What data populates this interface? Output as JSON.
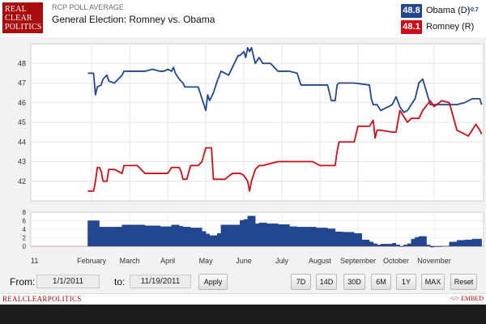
{
  "header": {
    "logo_lines": [
      "REAL",
      "CLEAR",
      "POLITICS"
    ],
    "kicker": "RCP POLL AVERAGE",
    "title": "General Election: Romney vs. Obama"
  },
  "legend": [
    {
      "value": "48.8",
      "name": "Obama (D)",
      "change": "+0.7",
      "color": "#22468f"
    },
    {
      "value": "48.1",
      "name": "Romney (R)",
      "change": "",
      "color": "#cc0d16"
    }
  ],
  "controls": {
    "from_label": "From:",
    "from_value": "1/1/2011",
    "to_label": "to:",
    "to_value": "11/19/2011",
    "apply_label": "Apply",
    "range_buttons": [
      "7D",
      "14D",
      "30D",
      "6M",
      "1Y",
      "MAX",
      "Reset"
    ]
  },
  "footer": {
    "brand": "REALCLEARPOLITICS",
    "embed": "</> EMBED"
  },
  "chart_data": [
    {
      "type": "line",
      "ylim": [
        41,
        49
      ],
      "yticks": [
        42,
        43,
        44,
        45,
        46,
        47,
        48
      ],
      "xlim": [
        0,
        11.9
      ],
      "grid": true,
      "series": [
        {
          "name": "Obama (D)",
          "color": "#22468f",
          "x": [
            1.5,
            1.65,
            1.7,
            1.75,
            1.85,
            1.9,
            2.0,
            2.05,
            2.2,
            2.4,
            2.45,
            2.6,
            2.8,
            3.0,
            3.2,
            3.4,
            3.5,
            3.6,
            3.7,
            3.75,
            3.8,
            3.9,
            4.0,
            4.05,
            4.4,
            4.5,
            4.6,
            4.65,
            4.7,
            4.8,
            4.9,
            5.0,
            5.2,
            5.4,
            5.45,
            5.5,
            5.6,
            5.65,
            5.7,
            5.75,
            5.8,
            5.9,
            6.0,
            6.1,
            6.3,
            6.5,
            6.6,
            6.8,
            7.0,
            7.1,
            7.3,
            7.6,
            7.8,
            7.9,
            8.0,
            8.05,
            8.1,
            8.5,
            8.9,
            8.95,
            9.0,
            9.1,
            9.2,
            9.5,
            9.6,
            9.7,
            9.8,
            9.9,
            10.0,
            10.1,
            10.2,
            10.3,
            10.5,
            10.8,
            11.0,
            11.2,
            11.4,
            11.6,
            11.75,
            11.8,
            11.85
          ],
          "values": [
            47.5,
            47.5,
            46.4,
            46.8,
            46.9,
            47.2,
            47.4,
            47.1,
            47.0,
            47.4,
            47.6,
            47.6,
            47.6,
            47.6,
            47.7,
            47.6,
            47.6,
            47.7,
            47.6,
            47.8,
            47.5,
            47.2,
            47.0,
            46.8,
            46.8,
            46.2,
            45.6,
            46.4,
            46.1,
            46.5,
            47.1,
            47.6,
            47.4,
            48.2,
            48.4,
            48.4,
            48.6,
            48.3,
            48.8,
            48.6,
            48.8,
            48.0,
            48.3,
            48.0,
            48.0,
            47.6,
            47.6,
            47.6,
            47.5,
            46.9,
            46.9,
            46.9,
            46.9,
            46.1,
            46.1,
            46.9,
            47.0,
            47.0,
            46.9,
            46.2,
            45.9,
            45.9,
            45.6,
            45.9,
            46.3,
            45.8,
            45.5,
            45.6,
            45.9,
            46.2,
            47.0,
            47.2,
            45.9,
            45.9,
            45.9,
            45.9,
            46.0,
            46.2,
            46.2,
            46.2,
            45.9
          ]
        },
        {
          "name": "Romney (R)",
          "color": "#cc0d16",
          "x": [
            1.5,
            1.65,
            1.7,
            1.75,
            1.8,
            1.85,
            1.9,
            2.0,
            2.05,
            2.2,
            2.4,
            2.45,
            2.6,
            2.8,
            3.0,
            3.2,
            3.4,
            3.5,
            3.6,
            3.7,
            3.9,
            3.95,
            4.0,
            4.1,
            4.2,
            4.4,
            4.5,
            4.6,
            4.65,
            4.7,
            4.75,
            4.8,
            4.9,
            5.0,
            5.1,
            5.3,
            5.5,
            5.6,
            5.7,
            5.75,
            5.8,
            5.9,
            6.0,
            6.1,
            6.3,
            6.5,
            6.6,
            6.8,
            7.0,
            7.2,
            7.4,
            7.6,
            7.8,
            7.9,
            8.0,
            8.05,
            8.1,
            8.3,
            8.5,
            8.6,
            8.9,
            9.0,
            9.05,
            9.1,
            9.2,
            9.5,
            9.6,
            9.7,
            9.9,
            10.0,
            10.1,
            10.2,
            10.3,
            10.5,
            10.6,
            10.8,
            11.0,
            11.2,
            11.5,
            11.7,
            11.8,
            11.85
          ],
          "values": [
            41.5,
            41.5,
            42.0,
            42.7,
            42.7,
            42.5,
            42.0,
            42.0,
            42.6,
            42.6,
            42.4,
            42.8,
            42.8,
            42.8,
            42.4,
            42.4,
            42.4,
            42.4,
            42.4,
            42.7,
            42.7,
            42.5,
            42.1,
            42.1,
            42.8,
            42.8,
            43.0,
            43.7,
            43.7,
            43.7,
            43.7,
            42.1,
            42.1,
            42.1,
            42.1,
            42.4,
            42.4,
            42.3,
            42.0,
            41.5,
            42.0,
            42.6,
            42.8,
            42.8,
            42.9,
            43.0,
            43.0,
            43.0,
            43.0,
            43.0,
            43.0,
            42.8,
            42.8,
            42.8,
            42.8,
            43.5,
            44.0,
            44.0,
            44.0,
            44.8,
            44.8,
            45.1,
            44.2,
            44.6,
            44.6,
            44.5,
            44.5,
            45.6,
            45.0,
            45.2,
            45.2,
            45.2,
            45.6,
            46.1,
            45.8,
            46.1,
            46.0,
            44.6,
            44.3,
            44.9,
            44.6,
            44.4
          ]
        }
      ]
    },
    {
      "type": "area",
      "name": "Spread",
      "color": "#22468f",
      "ylim": [
        0,
        8
      ],
      "yticks": [
        0,
        2,
        4,
        6,
        8
      ],
      "x": [
        1.5,
        1.7,
        1.8,
        2.0,
        2.4,
        2.6,
        3.0,
        3.4,
        3.6,
        3.7,
        3.9,
        4.0,
        4.2,
        4.5,
        4.6,
        4.7,
        4.8,
        4.9,
        5.0,
        5.3,
        5.5,
        5.6,
        5.7,
        5.9,
        6.0,
        6.2,
        6.5,
        6.8,
        7.0,
        7.2,
        7.5,
        7.8,
        8.0,
        8.2,
        8.5,
        8.7,
        8.9,
        9.0,
        9.1,
        9.2,
        9.5,
        9.6,
        9.7,
        9.8,
        9.9,
        10.0,
        10.1,
        10.2,
        10.4,
        10.5,
        10.6,
        10.8,
        11.0,
        11.2,
        11.4,
        11.6,
        11.85
      ],
      "values": [
        6.0,
        6.0,
        4.5,
        4.5,
        5.0,
        5.0,
        4.8,
        4.6,
        4.6,
        5.0,
        4.7,
        4.5,
        4.3,
        3.5,
        2.9,
        2.5,
        2.5,
        3.0,
        5.0,
        5.0,
        6.1,
        6.3,
        7.1,
        5.3,
        5.5,
        5.3,
        5.1,
        4.6,
        4.5,
        4.5,
        4.3,
        4.1,
        3.4,
        3.3,
        3.0,
        1.5,
        1.0,
        0.6,
        0.3,
        0.5,
        0.7,
        0.3,
        -0.1,
        0.3,
        0.6,
        1.7,
        2.1,
        2.3,
        0.3,
        -0.2,
        -0.1,
        0.0,
        1.0,
        1.4,
        1.5,
        1.7,
        1.6
      ]
    }
  ],
  "axis": {
    "x_ticks": [
      {
        "label": "11",
        "x": 0.1
      },
      {
        "label": "February",
        "x": 1.6
      },
      {
        "label": "March",
        "x": 2.6
      },
      {
        "label": "April",
        "x": 3.6
      },
      {
        "label": "May",
        "x": 4.6
      },
      {
        "label": "June",
        "x": 5.6
      },
      {
        "label": "July",
        "x": 6.6
      },
      {
        "label": "August",
        "x": 7.6
      },
      {
        "label": "September",
        "x": 8.6
      },
      {
        "label": "October",
        "x": 9.6
      },
      {
        "label": "November",
        "x": 10.6
      }
    ]
  }
}
